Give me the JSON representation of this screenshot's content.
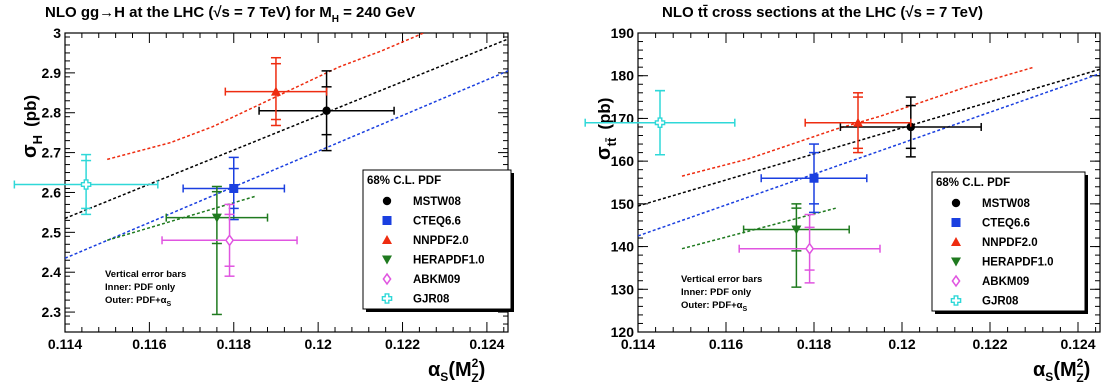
{
  "chart_data": [
    {
      "type": "scatter",
      "title": "NLO gg→H at the LHC (√s = 7 TeV) for M",
      "title_sub": "H",
      "title_tail": " = 240 GeV",
      "ylabel_main": "σ",
      "ylabel_sub": "H",
      "ylabel_unit": "(pb)",
      "xlabel_main": "α",
      "xlabel_sub": "S",
      "xlabel_paren": "(M",
      "xlabel_sup": "2",
      "xlabel_sub2": "Z",
      "xlabel_close": ")",
      "xlim": [
        0.114,
        0.1245
      ],
      "ylim": [
        2.25,
        3.0
      ],
      "xticks": [
        "0.114",
        "0.116",
        "0.118",
        "0.12",
        "0.122",
        "0.124"
      ],
      "yticks": [
        "2.3",
        "2.4",
        "2.5",
        "2.6",
        "2.7",
        "2.8",
        "2.9",
        "3"
      ],
      "grid": false,
      "legend_position": "lower-right",
      "legend_title": "68% C.L. PDF",
      "note_lines": [
        "Vertical error bars",
        "Inner: PDF only",
        "Outer: PDF+α"
      ],
      "note_sub": "S",
      "series": [
        {
          "name": "MSTW08",
          "color": "#000000",
          "marker": "circle",
          "x": 0.1202,
          "y": 2.805,
          "xerr": 0.0016,
          "yerr_inner": 0.06,
          "yerr_outer": 0.1,
          "trend": {
            "x": [
              0.114,
              0.1245
            ],
            "y": [
              2.535,
              2.985
            ]
          }
        },
        {
          "name": "CTEQ6.6",
          "color": "#1a3fe0",
          "marker": "square",
          "x": 0.118,
          "y": 2.61,
          "xerr": 0.0012,
          "yerr_inner": 0.05,
          "yerr_outer": 0.078,
          "trend": {
            "x": [
              0.114,
              0.1245
            ],
            "y": [
              2.435,
              2.905
            ]
          }
        },
        {
          "name": "NNPDF2.0",
          "color": "#ee2c10",
          "marker": "triangle-up",
          "x": 0.119,
          "y": 2.853,
          "xerr": 0.0012,
          "yerr_inner": 0.07,
          "yerr_outer": 0.085,
          "trend": {
            "x": [
              0.115,
              0.1165,
              0.1175,
              0.1185,
              0.1195,
              0.1205,
              0.1215,
              0.1225
            ],
            "y": [
              2.683,
              2.725,
              2.765,
              2.815,
              2.865,
              2.915,
              2.955,
              3.0
            ]
          }
        },
        {
          "name": "HERAPDF1.0",
          "color": "#1f7a1f",
          "marker": "triangle-down",
          "x": 0.1176,
          "y": 2.537,
          "xerr": 0.0012,
          "yerr_inner": 0.065,
          "yerr_outer_up": 0.078,
          "yerr_outer_down": 0.243,
          "trend": {
            "x": [
              0.115,
              0.1185
            ],
            "y": [
              2.48,
              2.59
            ]
          }
        },
        {
          "name": "ABKM09",
          "color": "#e055e0",
          "marker": "diamond-open",
          "x": 0.1179,
          "y": 2.48,
          "xerr": 0.0016,
          "yerr_inner": 0.065,
          "yerr_outer": 0.09
        },
        {
          "name": "GJR08",
          "color": "#2fd8d8",
          "marker": "cross-open",
          "x": 0.1145,
          "y": 2.62,
          "xerr": 0.0017,
          "yerr_inner": 0.06,
          "yerr_outer": 0.075
        }
      ]
    },
    {
      "type": "scatter",
      "title": "NLO tt̄ cross sections at the LHC (√s = 7 TeV)",
      "ylabel_main": "σ",
      "ylabel_sub": "tt̄",
      "ylabel_unit": "(pb)",
      "xlabel_main": "α",
      "xlabel_sub": "S",
      "xlabel_paren": "(M",
      "xlabel_sup": "2",
      "xlabel_sub2": "Z",
      "xlabel_close": ")",
      "xlim": [
        0.114,
        0.1245
      ],
      "ylim": [
        120,
        190
      ],
      "xticks": [
        "0.114",
        "0.116",
        "0.118",
        "0.12",
        "0.122",
        "0.124"
      ],
      "yticks": [
        "120",
        "130",
        "140",
        "150",
        "160",
        "170",
        "180",
        "190"
      ],
      "grid": false,
      "legend_position": "lower-right",
      "legend_title": "68% C.L. PDF",
      "note_lines": [
        "Vertical error bars",
        "Inner: PDF only",
        "Outer: PDF+α"
      ],
      "note_sub": "S",
      "series": [
        {
          "name": "MSTW08",
          "color": "#000000",
          "marker": "circle",
          "x": 0.1202,
          "y": 168,
          "xerr": 0.0016,
          "yerr_inner": 5,
          "yerr_outer": 7,
          "trend": {
            "x": [
              0.114,
              0.1245
            ],
            "y": [
              149.5,
              181.5
            ]
          }
        },
        {
          "name": "CTEQ6.6",
          "color": "#1a3fe0",
          "marker": "square",
          "x": 0.118,
          "y": 156,
          "xerr": 0.0012,
          "yerr_inner": 6,
          "yerr_outer": 8,
          "trend": {
            "x": [
              0.114,
              0.1245
            ],
            "y": [
              142.5,
              180.5
            ]
          }
        },
        {
          "name": "NNPDF2.0",
          "color": "#ee2c10",
          "marker": "triangle-up",
          "x": 0.119,
          "y": 169,
          "xerr": 0.0012,
          "yerr_inner": 6,
          "yerr_outer": 7,
          "trend": {
            "x": [
              0.115,
              0.1165,
              0.1175,
              0.1185,
              0.1195,
              0.1205,
              0.1215,
              0.123
            ],
            "y": [
              156.5,
              160.5,
              164,
              167.5,
              170.5,
              174,
              177.5,
              182
            ]
          }
        },
        {
          "name": "HERAPDF1.0",
          "color": "#1f7a1f",
          "marker": "triangle-down",
          "x": 0.1176,
          "y": 144,
          "xerr": 0.0012,
          "yerr_inner": 5,
          "yerr_outer_up": 6,
          "yerr_outer_down": 13.5,
          "trend": {
            "x": [
              0.115,
              0.1185
            ],
            "y": [
              139.5,
              149
            ]
          }
        },
        {
          "name": "ABKM09",
          "color": "#e055e0",
          "marker": "diamond-open",
          "x": 0.1179,
          "y": 139.5,
          "xerr": 0.0016,
          "yerr_inner": 5,
          "yerr_outer": 8
        },
        {
          "name": "GJR08",
          "color": "#2fd8d8",
          "marker": "cross-open",
          "x": 0.1145,
          "y": 169,
          "xerr": 0.0017,
          "yerr_inner": 7.5,
          "yerr_outer": 7.5
        }
      ]
    }
  ]
}
